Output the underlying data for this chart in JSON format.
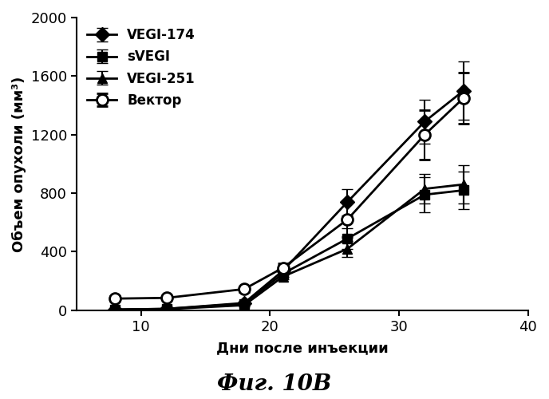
{
  "x_days": [
    8,
    12,
    18,
    21,
    26,
    32,
    35
  ],
  "vegi174_y": [
    5,
    10,
    50,
    270,
    740,
    1290,
    1500
  ],
  "vegi174_err": [
    3,
    5,
    10,
    25,
    90,
    150,
    200
  ],
  "svegi_y": [
    5,
    10,
    45,
    250,
    490,
    790,
    820
  ],
  "svegi_err": [
    3,
    5,
    10,
    20,
    70,
    120,
    130
  ],
  "vegi251_y": [
    3,
    8,
    35,
    230,
    420,
    830,
    860
  ],
  "vegi251_err": [
    3,
    4,
    8,
    18,
    55,
    100,
    130
  ],
  "vector_y": [
    80,
    85,
    145,
    290,
    620,
    1200,
    1450
  ],
  "vector_err": [
    15,
    10,
    20,
    30,
    120,
    170,
    175
  ],
  "xlabel": "Дни после инъекции",
  "ylabel": "Объем опухоли (мм³)",
  "caption": "Фиг. 10В",
  "legend_labels": [
    "VEGI-174",
    "sVEGI",
    "VEGI-251",
    "Вектор"
  ],
  "xlim": [
    5,
    40
  ],
  "ylim": [
    0,
    2000
  ],
  "xticks": [
    10,
    20,
    30,
    40
  ],
  "yticks": [
    0,
    400,
    800,
    1200,
    1600,
    2000
  ],
  "line_color": "#000000",
  "bg_color": "#ffffff",
  "marker_size": 9,
  "linewidth": 2.0,
  "capsize": 5,
  "elinewidth": 1.5
}
